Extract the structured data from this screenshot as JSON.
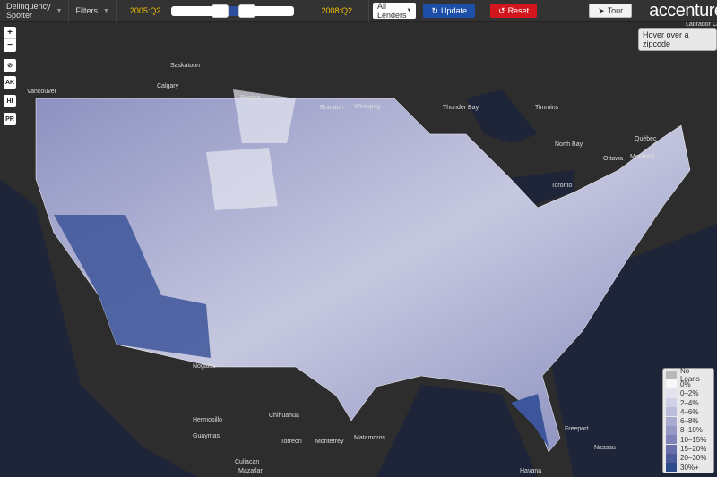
{
  "nav": {
    "app_title": "Delinquency Spotter",
    "filters_label": "Filters",
    "start_date": "2005:Q2",
    "end_date": "2008:Q2",
    "range_fraction": [
      0.45,
      0.62
    ],
    "lender_select": "All Lenders",
    "update_label": "Update",
    "reset_label": "Reset",
    "tour_label": "Tour",
    "logo": "accenture"
  },
  "hover_hint": "Hover over a zipcode",
  "controls": {
    "zoom_in": "+",
    "zoom_out": "−",
    "ak": "AK",
    "hi": "HI",
    "pr": "PR"
  },
  "legend": [
    {
      "label": "No Loans",
      "color": "#b8b8b8"
    },
    {
      "label": "0%",
      "color": "#f7f7fb"
    },
    {
      "label": "0–2%",
      "color": "#e3e3ef"
    },
    {
      "label": "2–4%",
      "color": "#d0d1e6"
    },
    {
      "label": "4–6%",
      "color": "#bcbddc"
    },
    {
      "label": "6–8%",
      "color": "#a9aacf"
    },
    {
      "label": "8–10%",
      "color": "#9597c4"
    },
    {
      "label": "10–15%",
      "color": "#7f83b8"
    },
    {
      "label": "15–20%",
      "color": "#676eaa"
    },
    {
      "label": "20–30%",
      "color": "#4c5a9b"
    },
    {
      "label": "30%+",
      "color": "#2c4a8c"
    }
  ],
  "cities": [
    {
      "name": "Saskatoon",
      "lon": 190,
      "lat": 75
    },
    {
      "name": "Calgary",
      "lon": 175,
      "lat": 98
    },
    {
      "name": "Regina",
      "lon": 268,
      "lat": 111
    },
    {
      "name": "Brandon",
      "lon": 357,
      "lat": 122
    },
    {
      "name": "Winnipeg",
      "lon": 395,
      "lat": 121
    },
    {
      "name": "Vancouver",
      "lon": 30,
      "lat": 104
    },
    {
      "name": "Thunder Bay",
      "lon": 494,
      "lat": 122
    },
    {
      "name": "Timmins",
      "lon": 597,
      "lat": 122
    },
    {
      "name": "Québec",
      "lon": 708,
      "lat": 157
    },
    {
      "name": "North Bay",
      "lon": 619,
      "lat": 163
    },
    {
      "name": "Ottawa",
      "lon": 673,
      "lat": 179
    },
    {
      "name": "Montreal",
      "lon": 703,
      "lat": 177
    },
    {
      "name": "Toronto",
      "lon": 615,
      "lat": 209
    },
    {
      "name": "Nogales",
      "lon": 215,
      "lat": 411
    },
    {
      "name": "Hermosillo",
      "lon": 215,
      "lat": 471
    },
    {
      "name": "Chihuahua",
      "lon": 300,
      "lat": 466
    },
    {
      "name": "Guaymas",
      "lon": 215,
      "lat": 489
    },
    {
      "name": "Torreon",
      "lon": 313,
      "lat": 495
    },
    {
      "name": "Monterrey",
      "lon": 352,
      "lat": 495
    },
    {
      "name": "Matamoros",
      "lon": 395,
      "lat": 491
    },
    {
      "name": "Culiacan",
      "lon": 262,
      "lat": 518
    },
    {
      "name": "Mazatlan",
      "lon": 266,
      "lat": 528
    },
    {
      "name": "Freeport",
      "lon": 630,
      "lat": 481
    },
    {
      "name": "Nassau",
      "lon": 663,
      "lat": 502
    },
    {
      "name": "Havana",
      "lon": 580,
      "lat": 528
    },
    {
      "name": "Labrador City",
      "lon": 765,
      "lat": 29
    }
  ]
}
